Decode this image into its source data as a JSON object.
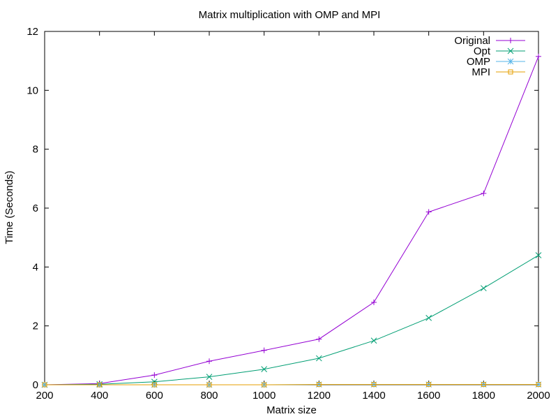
{
  "chart_data": {
    "type": "line",
    "title": "Matrix multiplication with OMP and MPI",
    "xlabel": "Matrix size",
    "ylabel": "Time (Seconds)",
    "xlim": [
      200,
      2000
    ],
    "ylim": [
      0,
      12
    ],
    "x_ticks": [
      "200",
      "400",
      "600",
      "800",
      "1000",
      "1200",
      "1400",
      "1600",
      "1800",
      "2000"
    ],
    "y_ticks": [
      "0",
      "2",
      "4",
      "6",
      "8",
      "10",
      "12"
    ],
    "grid": false,
    "legend_position": "top-right",
    "series": [
      {
        "name": "Original",
        "color": "#9400d3",
        "marker": "plus",
        "x": [
          200,
          400,
          600,
          800,
          1000,
          1200,
          1400,
          1600,
          1800,
          2000
        ],
        "values": [
          0.0,
          0.04,
          0.33,
          0.8,
          1.17,
          1.55,
          2.8,
          5.87,
          6.5,
          11.15
        ]
      },
      {
        "name": "Opt",
        "color": "#009e73",
        "marker": "cross",
        "x": [
          200,
          400,
          600,
          800,
          1000,
          1200,
          1400,
          1600,
          1800,
          2000
        ],
        "values": [
          0.0,
          0.02,
          0.1,
          0.27,
          0.53,
          0.9,
          1.5,
          2.27,
          3.28,
          4.4
        ]
      },
      {
        "name": "OMP",
        "color": "#56b4e9",
        "marker": "star",
        "x": [
          200,
          400,
          600,
          800,
          1000,
          1200,
          1400,
          1600,
          1800,
          2000
        ],
        "values": [
          0.0,
          0.0,
          0.0,
          0.0,
          0.0,
          0.01,
          0.01,
          0.01,
          0.01,
          0.01
        ]
      },
      {
        "name": "MPI",
        "color": "#e69f00",
        "marker": "square",
        "x": [
          200,
          400,
          600,
          800,
          1000,
          1200,
          1400,
          1600,
          1800,
          2000
        ],
        "values": [
          0.0,
          0.0,
          0.0,
          0.0,
          0.0,
          0.01,
          0.01,
          0.01,
          0.01,
          0.01
        ]
      }
    ]
  }
}
